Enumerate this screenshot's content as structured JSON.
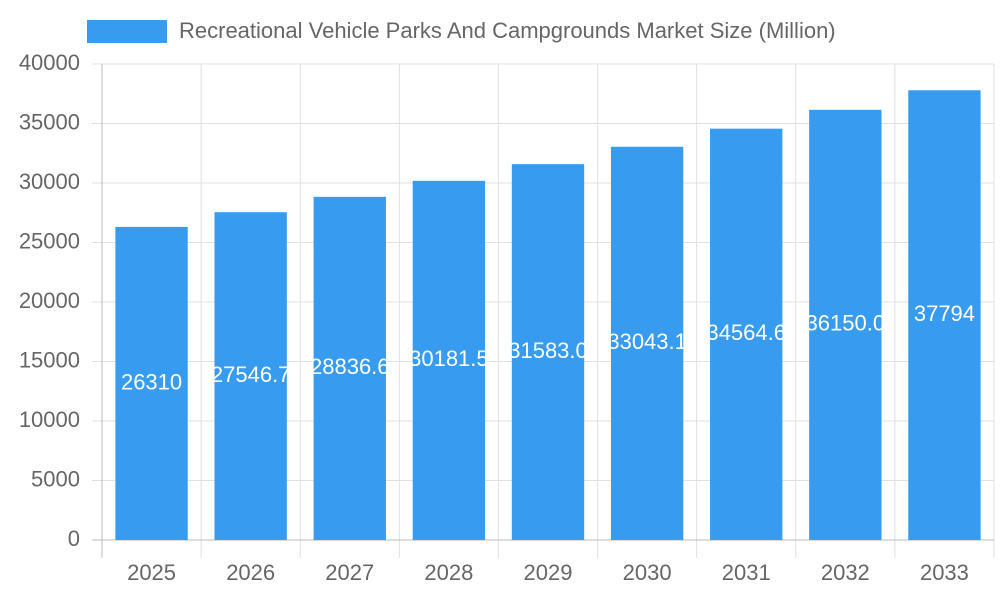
{
  "chart_data": {
    "type": "bar",
    "categories": [
      "2025",
      "2026",
      "2027",
      "2028",
      "2029",
      "2030",
      "2031",
      "2032",
      "2033"
    ],
    "series": [
      {
        "name": "Recreational Vehicle Parks And Campgrounds Market Size (Million)",
        "color": "#379bf0",
        "values": [
          26310,
          27546.7,
          28836.6,
          30181.5,
          31583.0,
          33043.1,
          34564.6,
          36150.0,
          37794
        ],
        "value_labels": [
          "26310",
          "27546.7",
          "28836.6",
          "30181.5",
          "31583.0",
          "33043.1",
          "34564.6",
          "36150.0",
          "37794"
        ]
      }
    ],
    "ylim": [
      0,
      40000
    ],
    "yticks": [
      0,
      5000,
      10000,
      15000,
      20000,
      25000,
      30000,
      35000,
      40000
    ],
    "grid": true
  }
}
